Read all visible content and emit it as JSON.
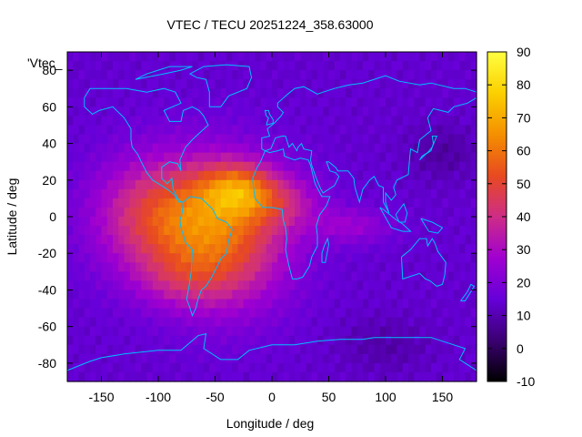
{
  "chart_data": {
    "type": "heatmap",
    "title": "VTEC / TECU 20251224_358.63000",
    "xlabel": "Longitude / deg",
    "ylabel": "Latitude / deg",
    "xlim": [
      -180,
      180
    ],
    "ylim": [
      -90,
      90
    ],
    "x_ticks": [
      "-150",
      "-100",
      "-50",
      "0",
      "50",
      "100",
      "150"
    ],
    "y_ticks": [
      "80",
      "60",
      "40",
      "20",
      "0",
      "-20",
      "-40",
      "-60",
      "-80"
    ],
    "colorbar": {
      "range": [
        -10,
        90
      ],
      "ticks": [
        "90",
        "80",
        "70",
        "60",
        "50",
        "40",
        "30",
        "20",
        "10",
        "0",
        "-10"
      ]
    },
    "key_label": "'Vtec_",
    "background_value": 14,
    "blobs": [
      {
        "lon": -100,
        "lat": 0,
        "rlon": 55,
        "rlat": 32,
        "amp": 32
      },
      {
        "lon": -40,
        "lat": -10,
        "rlon": 55,
        "rlat": 38,
        "amp": 38
      },
      {
        "lon": -30,
        "lat": 15,
        "rlon": 32,
        "rlat": 14,
        "amp": 28
      },
      {
        "lon": 10,
        "lat": 8,
        "rlon": 35,
        "rlat": 14,
        "amp": 14
      },
      {
        "lon": 70,
        "lat": -5,
        "rlon": 35,
        "rlat": 10,
        "amp": 12
      },
      {
        "lon": -80,
        "lat": -35,
        "rlon": 40,
        "rlat": 15,
        "amp": 10
      },
      {
        "lon": 150,
        "lat": 35,
        "rlon": 30,
        "rlat": 15,
        "amp": -6
      },
      {
        "lon": 100,
        "lat": -70,
        "rlon": 40,
        "rlat": 15,
        "amp": -5
      }
    ],
    "colors": {
      "coast": "#00bfff",
      "frame": "#000000",
      "palette": [
        "#000000",
        "#3b0072",
        "#6600d9",
        "#a000d0",
        "#ce2d86",
        "#e84a20",
        "#f59000",
        "#fbd000",
        "#ffff40"
      ]
    }
  }
}
